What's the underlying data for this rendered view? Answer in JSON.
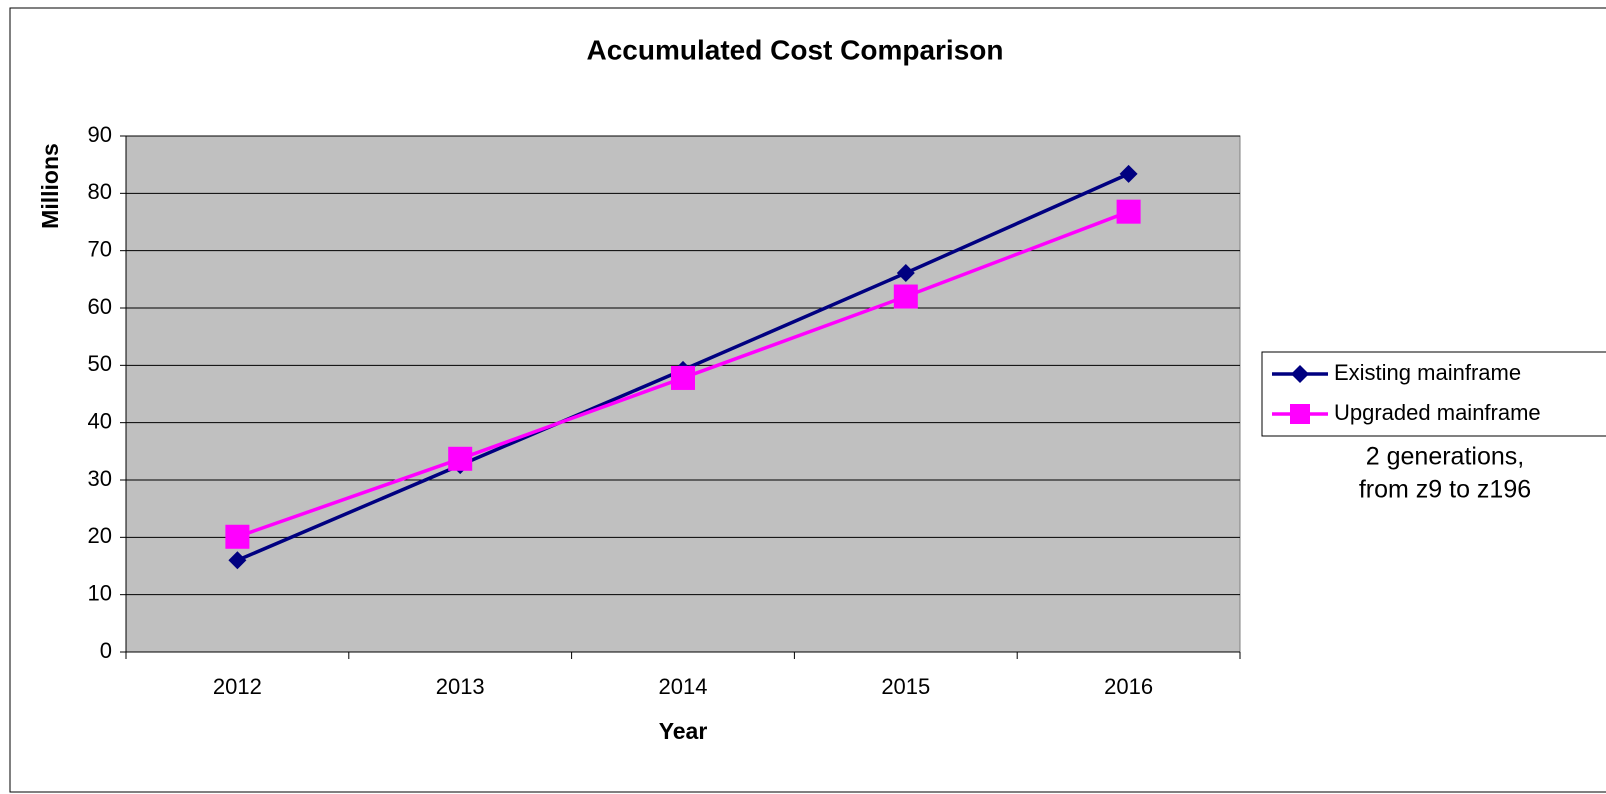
{
  "chart_data": {
    "type": "line",
    "title": "Accumulated Cost Comparison",
    "x_label": "Year",
    "y_label": "Millions",
    "categories": [
      "2012",
      "2013",
      "2014",
      "2015",
      "2016"
    ],
    "series": [
      {
        "name": "Existing mainframe",
        "color": "#000080",
        "marker": "diamond",
        "values": [
          16,
          32.6,
          49.2,
          66.1,
          83.4
        ]
      },
      {
        "name": "Upgraded mainframe",
        "color": "#ff00ff",
        "marker": "square",
        "values": [
          20.1,
          33.7,
          47.8,
          62,
          76.8
        ]
      }
    ],
    "ylim": [
      0,
      90
    ],
    "yticks": [
      0,
      10,
      20,
      30,
      40,
      50,
      60,
      70,
      80,
      90
    ],
    "grid": true,
    "plot_background": "#c0c0c0",
    "legend": "right",
    "annotation": [
      "2 generations,",
      "from z9 to z196"
    ]
  }
}
